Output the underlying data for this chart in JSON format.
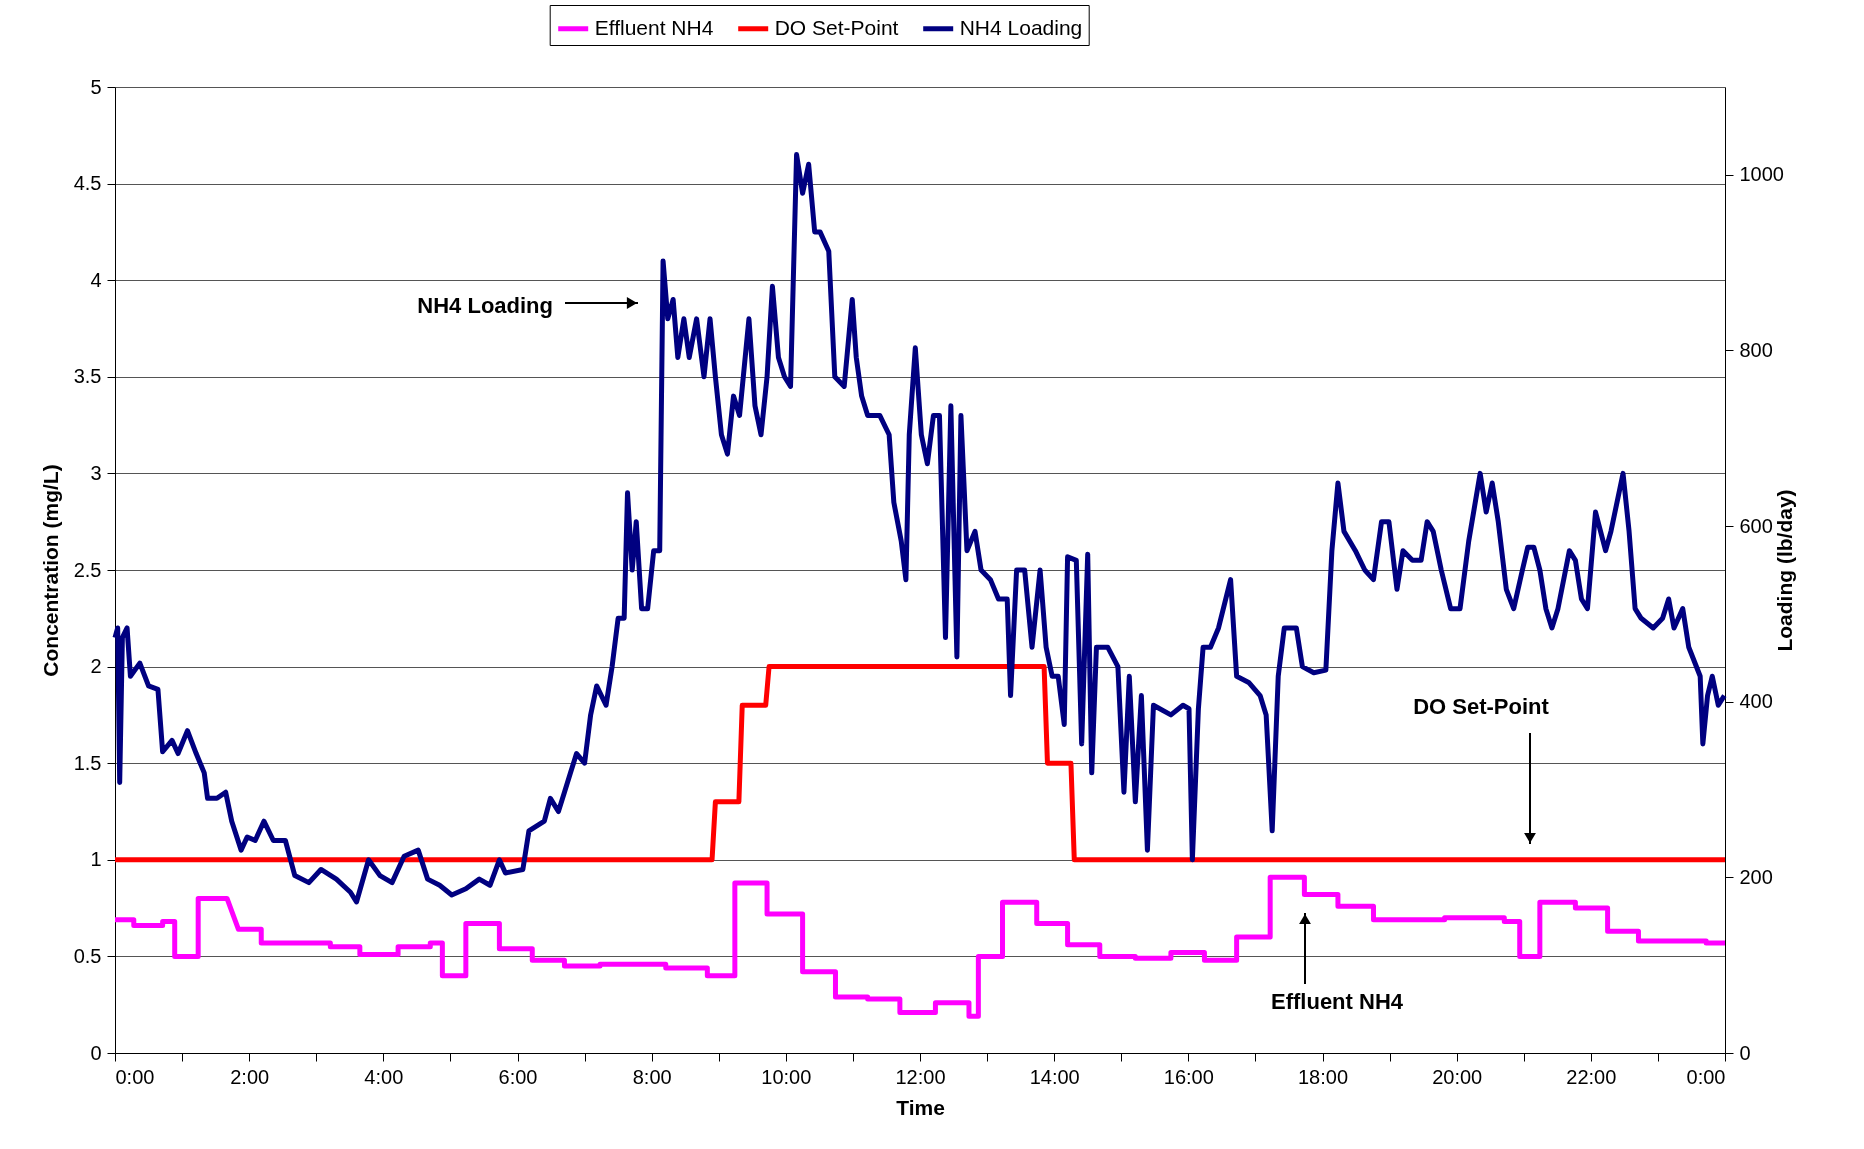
{
  "chart_data": {
    "type": "line",
    "xlabel": "Time",
    "ylabel": "Concentration (mg/L)",
    "y2label": "Loading (lb/day)",
    "xlim": [
      0,
      24
    ],
    "xticks": [
      {
        "value": 0,
        "label": "0:00"
      },
      {
        "value": 1,
        "label": null
      },
      {
        "value": 2,
        "label": "2:00"
      },
      {
        "value": 3,
        "label": null
      },
      {
        "value": 4,
        "label": "4:00"
      },
      {
        "value": 5,
        "label": null
      },
      {
        "value": 6,
        "label": "6:00"
      },
      {
        "value": 7,
        "label": null
      },
      {
        "value": 8,
        "label": "8:00"
      },
      {
        "value": 9,
        "label": null
      },
      {
        "value": 10,
        "label": "10:00"
      },
      {
        "value": 11,
        "label": null
      },
      {
        "value": 12,
        "label": "12:00"
      },
      {
        "value": 13,
        "label": null
      },
      {
        "value": 14,
        "label": "14:00"
      },
      {
        "value": 15,
        "label": null
      },
      {
        "value": 16,
        "label": "16:00"
      },
      {
        "value": 17,
        "label": null
      },
      {
        "value": 18,
        "label": "18:00"
      },
      {
        "value": 19,
        "label": null
      },
      {
        "value": 20,
        "label": "20:00"
      },
      {
        "value": 21,
        "label": null
      },
      {
        "value": 22,
        "label": "22:00"
      },
      {
        "value": 23,
        "label": null
      },
      {
        "value": 24,
        "label": "0:00"
      }
    ],
    "ylim": [
      0,
      5
    ],
    "yticks": [
      0,
      0.5,
      1,
      1.5,
      2,
      2.5,
      3,
      3.5,
      4,
      4.5,
      5
    ],
    "y2lim": [
      0,
      1100
    ],
    "y2ticks": [
      0,
      200,
      400,
      600,
      800,
      1000
    ],
    "grid": "y",
    "legend": "top",
    "line_style": "solid",
    "series": [
      {
        "name": "Effluent NH4",
        "color": "#ff00ff",
        "x": [
          0,
          0.28,
          0.28,
          0.71,
          0.71,
          0.89,
          0.89,
          1.24,
          1.24,
          1.67,
          1.84,
          2.18,
          2.18,
          3.21,
          3.21,
          3.65,
          3.65,
          4.22,
          4.22,
          4.7,
          4.7,
          4.88,
          4.88,
          5.23,
          5.23,
          5.73,
          5.73,
          6.22,
          6.22,
          6.7,
          6.7,
          7.23,
          7.23,
          8.21,
          8.21,
          8.83,
          8.83,
          9.24,
          9.24,
          9.72,
          9.72,
          10.25,
          10.25,
          10.74,
          10.74,
          11.22,
          11.22,
          11.7,
          11.7,
          12.23,
          12.23,
          12.73,
          12.73,
          12.87,
          12.87,
          13.23,
          13.23,
          13.74,
          13.74,
          14.2,
          14.2,
          14.68,
          14.68,
          15.21,
          15.21,
          15.74,
          15.74,
          16.24,
          16.24,
          16.72,
          16.72,
          17.22,
          17.22,
          17.73,
          17.73,
          18.23,
          18.23,
          18.76,
          18.76,
          19.82,
          19.82,
          20.71,
          20.71,
          20.94,
          20.94,
          21.24,
          21.24,
          21.77,
          21.77,
          22.25,
          22.25,
          22.71,
          22.71,
          23.72,
          23.72,
          24
        ],
        "values": [
          0.69,
          0.69,
          0.66,
          0.66,
          0.68,
          0.68,
          0.5,
          0.5,
          0.8,
          0.8,
          0.64,
          0.64,
          0.57,
          0.57,
          0.55,
          0.55,
          0.51,
          0.51,
          0.55,
          0.55,
          0.57,
          0.57,
          0.4,
          0.4,
          0.67,
          0.67,
          0.54,
          0.54,
          0.48,
          0.48,
          0.45,
          0.45,
          0.46,
          0.46,
          0.44,
          0.44,
          0.4,
          0.4,
          0.88,
          0.88,
          0.72,
          0.72,
          0.42,
          0.42,
          0.29,
          0.29,
          0.28,
          0.28,
          0.21,
          0.21,
          0.26,
          0.26,
          0.19,
          0.19,
          0.5,
          0.5,
          0.78,
          0.78,
          0.67,
          0.67,
          0.56,
          0.56,
          0.5,
          0.5,
          0.49,
          0.49,
          0.52,
          0.52,
          0.48,
          0.48,
          0.6,
          0.6,
          0.91,
          0.91,
          0.82,
          0.82,
          0.76,
          0.76,
          0.69,
          0.69,
          0.7,
          0.7,
          0.68,
          0.68,
          0.5,
          0.5,
          0.78,
          0.78,
          0.75,
          0.75,
          0.63,
          0.63,
          0.58,
          0.58,
          0.57,
          0.57
        ]
      },
      {
        "name": "DO Set-Point",
        "color": "#ff0000",
        "x": [
          0,
          8.9,
          8.95,
          9.3,
          9.35,
          9.7,
          9.75,
          13.85,
          13.9,
          14.25,
          14.3,
          24
        ],
        "values": [
          1,
          1,
          1.3,
          1.3,
          1.8,
          1.8,
          2,
          2,
          1.5,
          1.5,
          1,
          1
        ]
      },
      {
        "name": "NH4 Loading",
        "color": "#000080",
        "axis": "y2",
        "x": [
          0,
          0.04,
          0.07,
          0.11,
          0.18,
          0.23,
          0.37,
          0.5,
          0.64,
          0.71,
          0.85,
          0.94,
          1.08,
          1.21,
          1.33,
          1.38,
          1.52,
          1.65,
          1.74,
          1.88,
          1.97,
          2.09,
          2.22,
          2.36,
          2.54,
          2.68,
          2.89,
          3.07,
          3.3,
          3.51,
          3.6,
          3.78,
          3.95,
          4.13,
          4.31,
          4.52,
          4.66,
          4.84,
          5.02,
          5.23,
          5.43,
          5.59,
          5.73,
          5.82,
          6.08,
          6.17,
          6.4,
          6.49,
          6.61,
          6.7,
          6.79,
          6.88,
          7,
          7.09,
          7.18,
          7.32,
          7.41,
          7.5,
          7.59,
          7.64,
          7.71,
          7.77,
          7.85,
          7.94,
          8.03,
          8.12,
          8.17,
          8.24,
          8.32,
          8.39,
          8.48,
          8.56,
          8.67,
          8.78,
          8.87,
          8.95,
          9.04,
          9.13,
          9.22,
          9.31,
          9.45,
          9.54,
          9.63,
          9.72,
          9.8,
          9.89,
          9.98,
          10.07,
          10.16,
          10.25,
          10.34,
          10.43,
          10.51,
          10.64,
          10.73,
          10.87,
          10.99,
          11.05,
          11.13,
          11.22,
          11.4,
          11.54,
          11.61,
          11.72,
          11.79,
          11.84,
          11.93,
          12.02,
          12.11,
          12.2,
          12.29,
          12.38,
          12.46,
          12.55,
          12.61,
          12.7,
          12.82,
          12.91,
          13.05,
          13.17,
          13.3,
          13.35,
          13.44,
          13.56,
          13.67,
          13.79,
          13.88,
          13.97,
          14.06,
          14.15,
          14.2,
          14.33,
          14.41,
          14.5,
          14.56,
          14.63,
          14.8,
          14.95,
          15.04,
          15.12,
          15.21,
          15.3,
          15.39,
          15.48,
          15.74,
          15.92,
          16.01,
          16.06,
          16.15,
          16.22,
          16.33,
          16.45,
          16.63,
          16.72,
          16.9,
          17.07,
          17.16,
          17.25,
          17.34,
          17.43,
          17.61,
          17.7,
          17.87,
          18.05,
          18.14,
          18.23,
          18.32,
          18.49,
          18.63,
          18.76,
          18.88,
          18.99,
          19.11,
          19.2,
          19.34,
          19.47,
          19.56,
          19.65,
          19.77,
          19.91,
          20.05,
          20.18,
          20.35,
          20.44,
          20.53,
          20.62,
          20.74,
          20.85,
          20.98,
          21.06,
          21.15,
          21.24,
          21.33,
          21.42,
          21.51,
          21.68,
          21.77,
          21.86,
          21.95,
          22.07,
          22.22,
          22.3,
          22.48,
          22.57,
          22.66,
          22.75,
          22.93,
          23.07,
          23.16,
          23.24,
          23.37,
          23.46,
          23.63,
          23.67,
          23.74,
          23.81,
          23.9,
          23.99
        ],
        "values": [
          473,
          484,
          308,
          473,
          484,
          429,
          444,
          418,
          414,
          343,
          356,
          341,
          367,
          341,
          319,
          290,
          290,
          297,
          264,
          231,
          246,
          242,
          264,
          242,
          242,
          202,
          194,
          209,
          198,
          183,
          172,
          220,
          202,
          194,
          224,
          231,
          198,
          191,
          180,
          187,
          198,
          191,
          220,
          205,
          209,
          253,
          264,
          290,
          275,
          297,
          319,
          341,
          330,
          385,
          418,
          396,
          440,
          495,
          495,
          638,
          550,
          605,
          506,
          506,
          572,
          572,
          902,
          836,
          858,
          792,
          836,
          792,
          836,
          770,
          836,
          770,
          704,
          682,
          748,
          726,
          836,
          737,
          704,
          770,
          873,
          792,
          770,
          759,
          1023,
          979,
          1012,
          935,
          935,
          913,
          770,
          759,
          858,
          792,
          748,
          726,
          726,
          704,
          627,
          583,
          539,
          704,
          803,
          704,
          671,
          726,
          726,
          473,
          737,
          451,
          726,
          572,
          594,
          550,
          539,
          517,
          517,
          407,
          550,
          550,
          462,
          550,
          462,
          429,
          429,
          374,
          565,
          561,
          352,
          568,
          319,
          462,
          462,
          440,
          297,
          429,
          286,
          407,
          231,
          396,
          385,
          396,
          392,
          220,
          392,
          462,
          462,
          484,
          539,
          429,
          422,
          407,
          385,
          253,
          429,
          484,
          484,
          440,
          433,
          436,
          572,
          649,
          594,
          572,
          550,
          539,
          605,
          605,
          528,
          572,
          561,
          561,
          605,
          594,
          550,
          506,
          506,
          583,
          660,
          616,
          649,
          605,
          528,
          506,
          550,
          576,
          576,
          550,
          506,
          484,
          506,
          572,
          561,
          517,
          506,
          616,
          572,
          594,
          660,
          594,
          506,
          495,
          484,
          495,
          517,
          484,
          506,
          462,
          429,
          352,
          407,
          429,
          396,
          407
        ]
      }
    ],
    "annotations": [
      "NH4 Loading",
      "DO Set-Point",
      "Effluent NH4"
    ]
  }
}
